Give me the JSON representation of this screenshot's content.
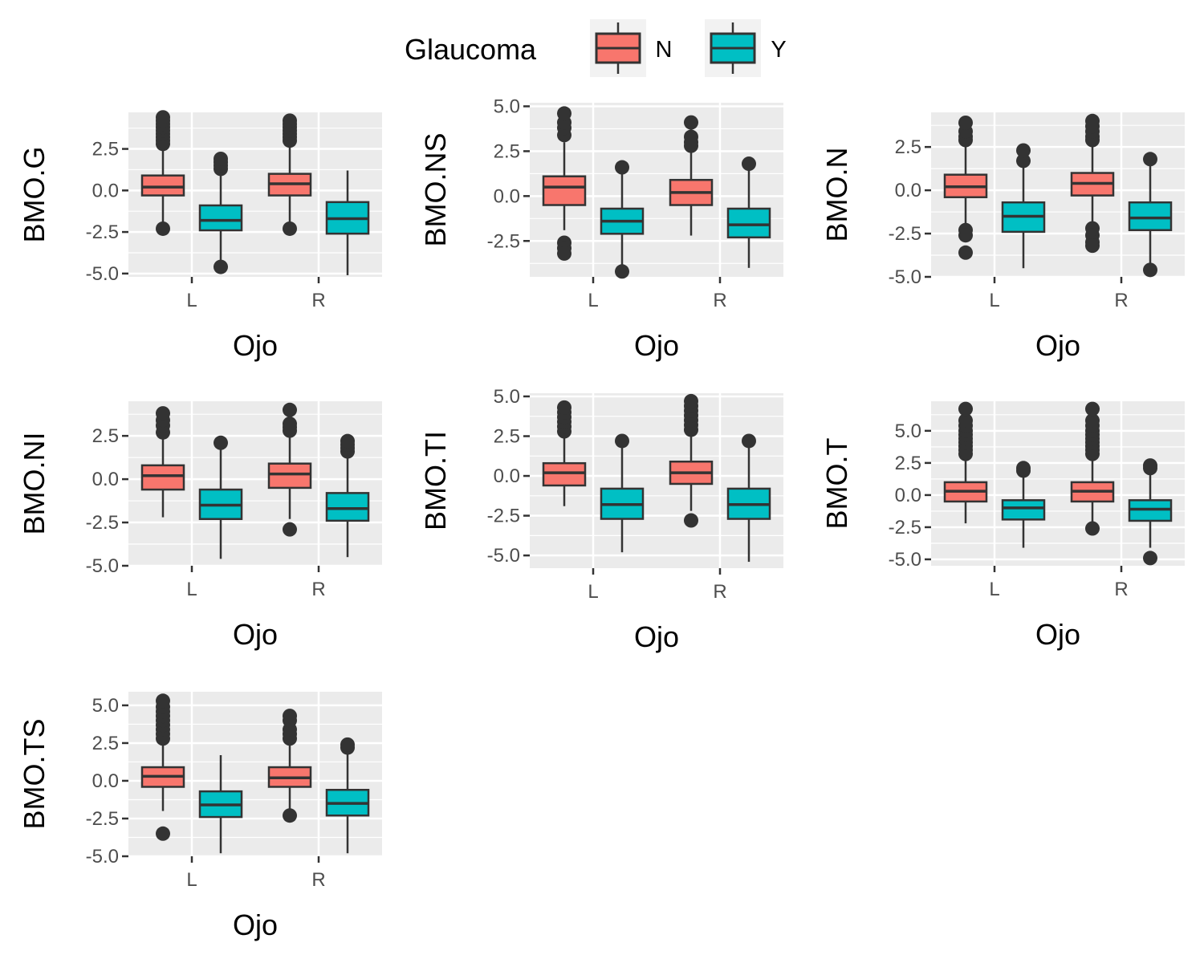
{
  "legend": {
    "title": "Glaucoma",
    "position": "top",
    "entries": [
      {
        "label": "N",
        "color": "#F8766D"
      },
      {
        "label": "Y",
        "color": "#00BFC4"
      }
    ]
  },
  "colors": {
    "panel_background": "#EBEBEB",
    "grid": "#FFFFFF",
    "box_outline": "#333333",
    "outlier": "#333333",
    "N": "#F8766D",
    "Y": "#00BFC4"
  },
  "chart_data": [
    {
      "type": "box",
      "xlabel": "Ojo",
      "ylabel": "BMO.G",
      "categories": [
        "L",
        "R"
      ],
      "ylim": [
        -5.2,
        4.7
      ],
      "yticks": [
        -5.0,
        -2.5,
        0.0,
        2.5
      ],
      "ytick_labels": [
        "-5.0",
        "-2.5",
        "0.0",
        "2.5"
      ],
      "grid": true,
      "series": [
        {
          "name": "N",
          "values": [
            {
              "low": -2.2,
              "q1": -0.3,
              "median": 0.2,
              "q3": 0.9,
              "high": 2.6,
              "outliers": [
                -2.3,
                2.8,
                3.0,
                3.2,
                3.4,
                3.6,
                3.8,
                4.0,
                4.2,
                4.4
              ]
            },
            {
              "low": -2.2,
              "q1": -0.3,
              "median": 0.4,
              "q3": 1.0,
              "high": 2.9,
              "outliers": [
                -2.3,
                3.0,
                3.2,
                3.4,
                3.6,
                3.8,
                4.0,
                4.2
              ]
            }
          ]
        },
        {
          "name": "Y",
          "values": [
            {
              "low": -4.4,
              "q1": -2.4,
              "median": -1.8,
              "q3": -0.9,
              "high": 1.1,
              "outliers": [
                -4.6,
                1.3,
                1.5,
                1.7,
                1.9
              ]
            },
            {
              "low": -5.1,
              "q1": -2.6,
              "median": -1.7,
              "q3": -0.7,
              "high": 1.2,
              "outliers": []
            }
          ]
        }
      ]
    },
    {
      "type": "box",
      "xlabel": "Ojo",
      "ylabel": "BMO.NS",
      "categories": [
        "L",
        "R"
      ],
      "ylim": [
        -4.5,
        5.2
      ],
      "yticks": [
        -2.5,
        0.0,
        2.5,
        5.0
      ],
      "ytick_labels": [
        "-2.5",
        "0.0",
        "2.5",
        "5.0"
      ],
      "grid": true,
      "series": [
        {
          "name": "N",
          "values": [
            {
              "low": -1.9,
              "q1": -0.5,
              "median": 0.5,
              "q3": 1.1,
              "high": 3.0,
              "outliers": [
                -2.6,
                -2.9,
                -3.2,
                3.4,
                3.8,
                4.1,
                4.6
              ]
            },
            {
              "low": -2.2,
              "q1": -0.5,
              "median": 0.2,
              "q3": 0.9,
              "high": 2.5,
              "outliers": [
                2.8,
                3.0,
                3.3,
                4.1
              ]
            }
          ]
        },
        {
          "name": "Y",
          "values": [
            {
              "low": -4.0,
              "q1": -2.1,
              "median": -1.4,
              "q3": -0.7,
              "high": 1.3,
              "outliers": [
                -4.2,
                1.6
              ]
            },
            {
              "low": -4.0,
              "q1": -2.3,
              "median": -1.6,
              "q3": -0.7,
              "high": 1.5,
              "outliers": [
                1.8
              ]
            }
          ]
        }
      ]
    },
    {
      "type": "box",
      "xlabel": "Ojo",
      "ylabel": "BMO.N",
      "categories": [
        "L",
        "R"
      ],
      "ylim": [
        -5.0,
        4.5
      ],
      "yticks": [
        -5.0,
        -2.5,
        0.0,
        2.5
      ],
      "ytick_labels": [
        "-5.0",
        "-2.5",
        "0.0",
        "2.5"
      ],
      "grid": true,
      "series": [
        {
          "name": "N",
          "values": [
            {
              "low": -2.0,
              "q1": -0.4,
              "median": 0.2,
              "q3": 0.9,
              "high": 2.6,
              "outliers": [
                -2.3,
                -2.6,
                -3.6,
                2.9,
                3.1,
                3.4,
                3.9
              ]
            },
            {
              "low": -1.9,
              "q1": -0.3,
              "median": 0.4,
              "q3": 1.0,
              "high": 2.7,
              "outliers": [
                -2.2,
                -2.6,
                -3.0,
                -3.2,
                2.9,
                3.1,
                3.4,
                3.7,
                4.0
              ]
            }
          ]
        },
        {
          "name": "Y",
          "values": [
            {
              "low": -4.5,
              "q1": -2.4,
              "median": -1.5,
              "q3": -0.7,
              "high": 1.5,
              "outliers": [
                1.7,
                2.3
              ]
            },
            {
              "low": -4.3,
              "q1": -2.3,
              "median": -1.6,
              "q3": -0.7,
              "high": 1.6,
              "outliers": [
                -4.6,
                1.8
              ]
            }
          ]
        }
      ]
    },
    {
      "type": "box",
      "xlabel": "Ojo",
      "ylabel": "BMO.NI",
      "categories": [
        "L",
        "R"
      ],
      "ylim": [
        -5.0,
        4.5
      ],
      "yticks": [
        -5.0,
        -2.5,
        0.0,
        2.5
      ],
      "ytick_labels": [
        "-5.0",
        "-2.5",
        "0.0",
        "2.5"
      ],
      "grid": true,
      "series": [
        {
          "name": "N",
          "values": [
            {
              "low": -2.2,
              "q1": -0.6,
              "median": 0.2,
              "q3": 0.8,
              "high": 2.4,
              "outliers": [
                2.7,
                3.1,
                3.4,
                3.8
              ]
            },
            {
              "low": -2.3,
              "q1": -0.5,
              "median": 0.3,
              "q3": 0.9,
              "high": 2.6,
              "outliers": [
                -2.9,
                2.8,
                3.0,
                3.2,
                4.0
              ]
            }
          ]
        },
        {
          "name": "Y",
          "values": [
            {
              "low": -4.6,
              "q1": -2.3,
              "median": -1.5,
              "q3": -0.6,
              "high": 1.8,
              "outliers": [
                2.1
              ]
            },
            {
              "low": -4.5,
              "q1": -2.4,
              "median": -1.7,
              "q3": -0.8,
              "high": 1.4,
              "outliers": [
                1.6,
                1.8,
                2.0,
                2.2
              ]
            }
          ]
        }
      ]
    },
    {
      "type": "box",
      "xlabel": "Ojo",
      "ylabel": "BMO.TI",
      "categories": [
        "L",
        "R"
      ],
      "ylim": [
        -5.8,
        5.2
      ],
      "yticks": [
        -5.0,
        -2.5,
        0.0,
        2.5,
        5.0
      ],
      "ytick_labels": [
        "-5.0",
        "-2.5",
        "0.0",
        "2.5",
        "5.0"
      ],
      "grid": true,
      "series": [
        {
          "name": "N",
          "values": [
            {
              "low": -1.9,
              "q1": -0.6,
              "median": 0.2,
              "q3": 0.8,
              "high": 2.6,
              "outliers": [
                2.8,
                3.1,
                3.4,
                3.7,
                4.0,
                4.3
              ]
            },
            {
              "low": -2.2,
              "q1": -0.5,
              "median": 0.2,
              "q3": 0.9,
              "high": 2.7,
              "outliers": [
                -2.8,
                2.9,
                3.2,
                3.5,
                3.8,
                4.1,
                4.4,
                4.7
              ]
            }
          ]
        },
        {
          "name": "Y",
          "values": [
            {
              "low": -4.8,
              "q1": -2.7,
              "median": -1.8,
              "q3": -0.8,
              "high": 2.0,
              "outliers": [
                2.2
              ]
            },
            {
              "low": -5.4,
              "q1": -2.7,
              "median": -1.8,
              "q3": -0.8,
              "high": 2.0,
              "outliers": [
                2.2
              ]
            }
          ]
        }
      ]
    },
    {
      "type": "box",
      "xlabel": "Ojo",
      "ylabel": "BMO.T",
      "categories": [
        "L",
        "R"
      ],
      "ylim": [
        -5.5,
        7.3
      ],
      "yticks": [
        -5.0,
        -2.5,
        0.0,
        2.5,
        5.0
      ],
      "ytick_labels": [
        "-5.0",
        "-2.5",
        "0.0",
        "2.5",
        "5.0"
      ],
      "grid": true,
      "series": [
        {
          "name": "N",
          "values": [
            {
              "low": -2.2,
              "q1": -0.5,
              "median": 0.3,
              "q3": 1.0,
              "high": 3.0,
              "outliers": [
                3.2,
                3.5,
                3.8,
                4.1,
                4.4,
                4.7,
                5.0,
                5.4,
                5.8,
                6.7
              ]
            },
            {
              "low": -2.3,
              "q1": -0.5,
              "median": 0.3,
              "q3": 1.0,
              "high": 3.0,
              "outliers": [
                -2.6,
                3.2,
                3.5,
                3.8,
                4.1,
                4.4,
                4.7,
                5.0,
                5.4,
                5.8,
                6.7
              ]
            }
          ]
        },
        {
          "name": "Y",
          "values": [
            {
              "low": -4.1,
              "q1": -1.9,
              "median": -1.0,
              "q3": -0.4,
              "high": 1.7,
              "outliers": [
                1.9,
                2.1
              ]
            },
            {
              "low": -4.1,
              "q1": -2.0,
              "median": -1.1,
              "q3": -0.4,
              "high": 1.9,
              "outliers": [
                -4.9,
                2.1,
                2.3
              ]
            }
          ]
        }
      ]
    },
    {
      "type": "box",
      "xlabel": "Ojo",
      "ylabel": "BMO.TS",
      "categories": [
        "L",
        "R"
      ],
      "ylim": [
        -5.0,
        5.9
      ],
      "yticks": [
        -5.0,
        -2.5,
        0.0,
        2.5,
        5.0
      ],
      "ytick_labels": [
        "-5.0",
        "-2.5",
        "0.0",
        "2.5",
        "5.0"
      ],
      "grid": true,
      "series": [
        {
          "name": "N",
          "values": [
            {
              "low": -2.0,
              "q1": -0.4,
              "median": 0.3,
              "q3": 0.9,
              "high": 2.5,
              "outliers": [
                -3.5,
                2.8,
                3.1,
                3.4,
                3.7,
                4.0,
                4.3,
                4.6,
                4.9,
                5.3
              ]
            },
            {
              "low": -2.0,
              "q1": -0.4,
              "median": 0.2,
              "q3": 0.9,
              "high": 2.5,
              "outliers": [
                -2.3,
                2.8,
                3.1,
                3.4,
                4.0,
                4.3
              ]
            }
          ]
        },
        {
          "name": "Y",
          "values": [
            {
              "low": -4.8,
              "q1": -2.4,
              "median": -1.6,
              "q3": -0.7,
              "high": 1.7,
              "outliers": []
            },
            {
              "low": -4.8,
              "q1": -2.3,
              "median": -1.5,
              "q3": -0.6,
              "high": 1.9,
              "outliers": [
                2.2,
                2.4
              ]
            }
          ]
        }
      ]
    }
  ]
}
